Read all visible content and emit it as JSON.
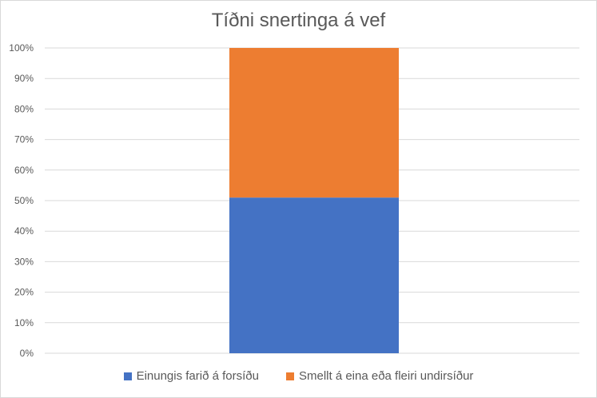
{
  "chart_data": {
    "type": "bar",
    "stacked": "percent",
    "title": "Tíðni snertinga á vef",
    "categories": [
      ""
    ],
    "series": [
      {
        "name": "Einungis farið á forsíðu",
        "values": [
          51
        ],
        "color": "#4472C4"
      },
      {
        "name": "Smellt á eina eða fleiri undirsíður",
        "values": [
          49
        ],
        "color": "#ED7D31"
      }
    ],
    "ylim": [
      0,
      100
    ],
    "yticks": [
      "0%",
      "10%",
      "20%",
      "30%",
      "40%",
      "50%",
      "60%",
      "70%",
      "80%",
      "90%",
      "100%"
    ],
    "grid": true,
    "legend": "bottom",
    "xlabel": "",
    "ylabel": ""
  }
}
